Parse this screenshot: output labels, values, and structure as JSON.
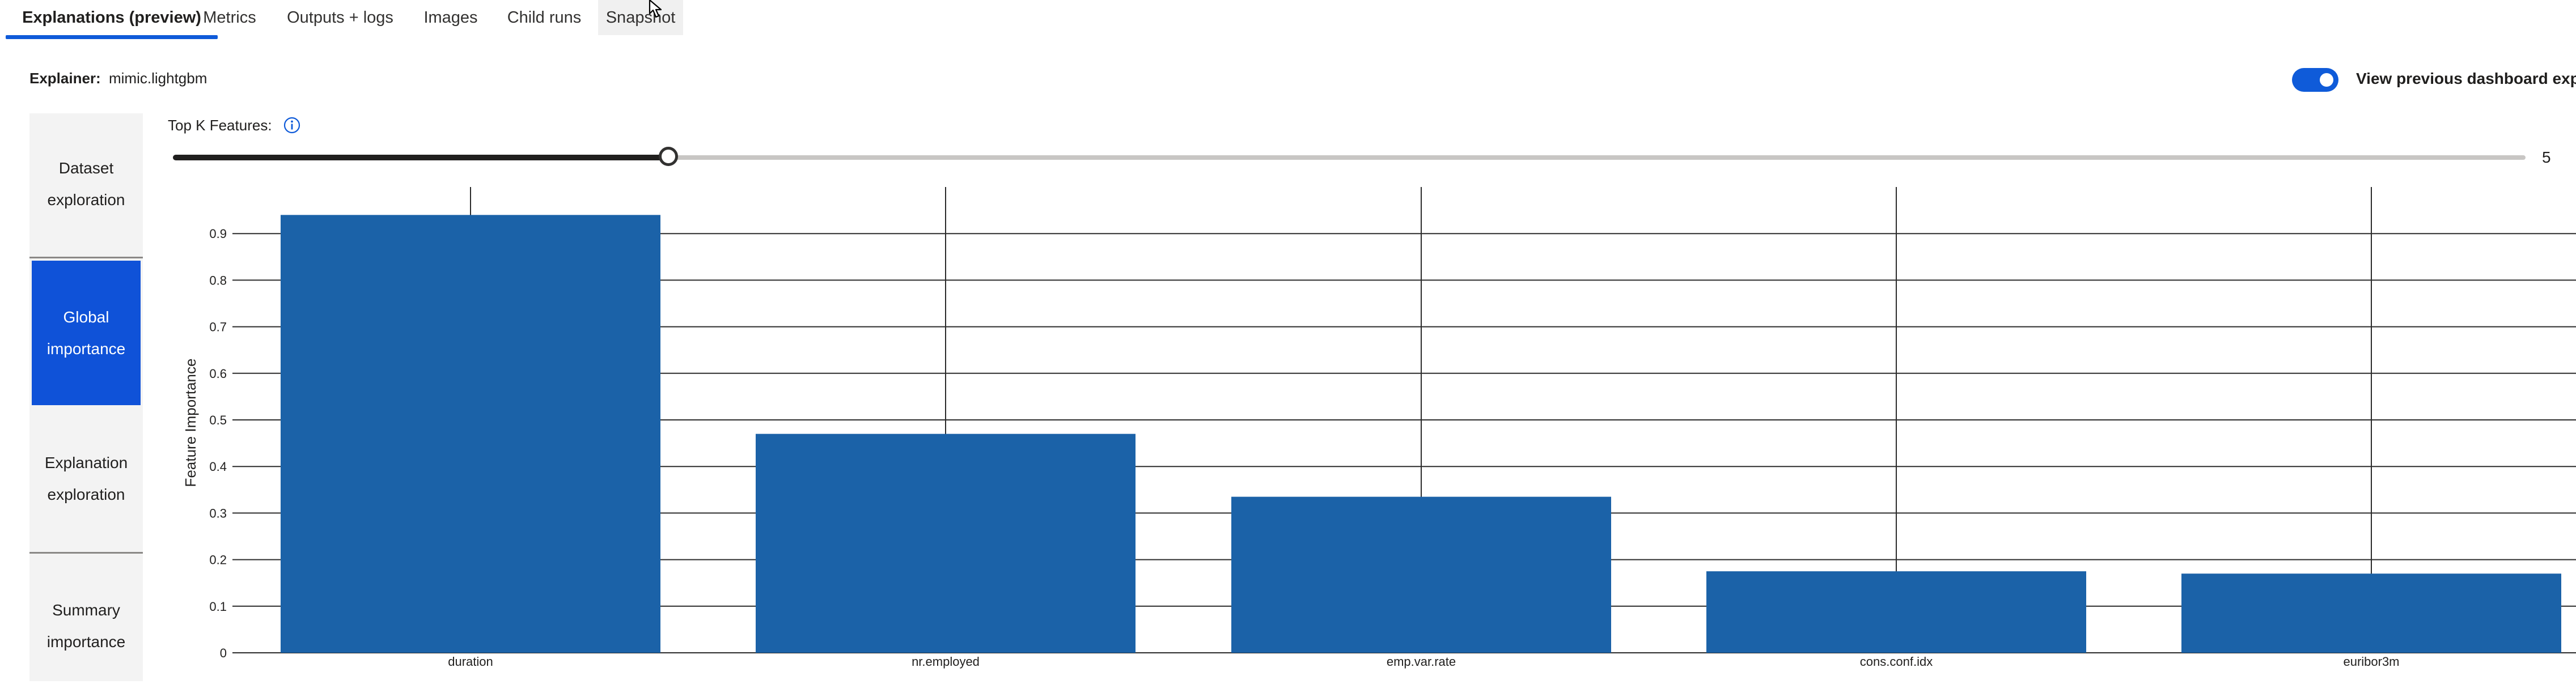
{
  "tabs": [
    {
      "label": "Explanations (preview)",
      "active": true
    },
    {
      "label": "Metrics"
    },
    {
      "label": "Outputs + logs"
    },
    {
      "label": "Images"
    },
    {
      "label": "Child runs"
    },
    {
      "label": "Snapshot"
    }
  ],
  "explainer": {
    "label": "Explainer:",
    "value": "mimic.lightgbm"
  },
  "toggle": {
    "label": "View previous dashboard expe",
    "on": true
  },
  "leftnav": {
    "items": [
      {
        "line1": "Dataset",
        "line2": "exploration"
      },
      {
        "line1": "Global",
        "line2": "importance",
        "selected": true
      },
      {
        "line1": "Explanation",
        "line2": "exploration"
      },
      {
        "line1": "Summary",
        "line2": "importance"
      }
    ]
  },
  "topk": {
    "label": "Top K Features:",
    "value": "5",
    "icon": "info-icon",
    "fraction": 0.21
  },
  "colors": {
    "accent": "#0f5bd9",
    "bar": "#1b62a8",
    "selected_nav": "#0f52d8"
  },
  "chart_data": {
    "type": "bar",
    "ylabel": "Feature Importance",
    "xlabel": "",
    "categories": [
      "duration",
      "nr.employed",
      "emp.var.rate",
      "cons.conf.idx",
      "euribor3m"
    ],
    "values": [
      0.94,
      0.47,
      0.335,
      0.175,
      0.17
    ],
    "ylim": [
      0,
      1.0
    ],
    "yticks": [
      "0",
      "0.1",
      "0.2",
      "0.3",
      "0.4",
      "0.5",
      "0.6",
      "0.7",
      "0.8",
      "0.9"
    ],
    "grid": true
  }
}
